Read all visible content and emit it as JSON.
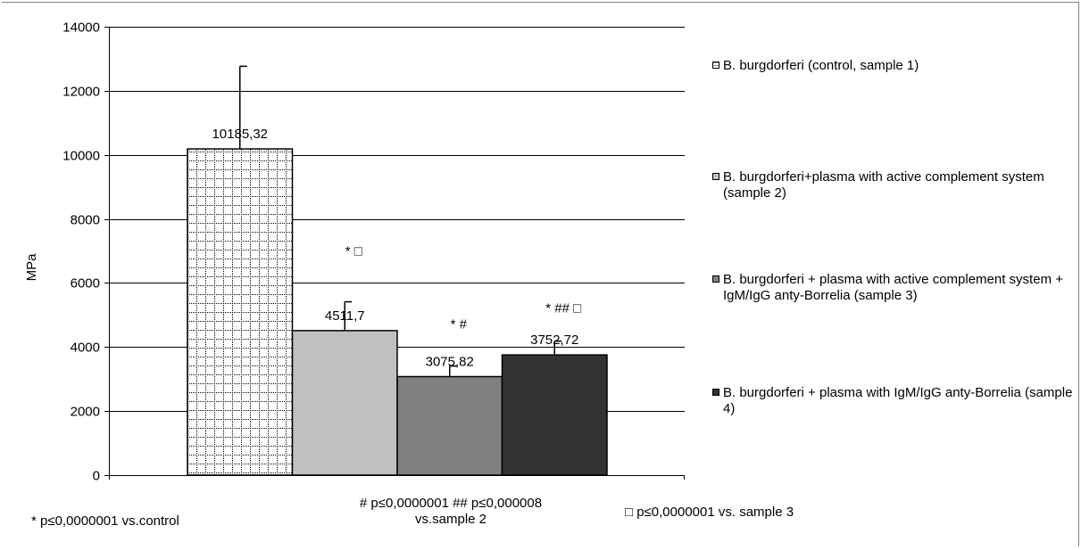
{
  "colors": {
    "sample1": "#ffffff",
    "sample2": "#c0c0c0",
    "sample3": "#808080",
    "sample4": "#333333",
    "grid": "#000000"
  },
  "legend": {
    "items": [
      {
        "label": "B. burgdorferi (control, sample 1)",
        "color": "#ffffff",
        "pattern": "dotted-grid"
      },
      {
        "label": "B. burgdorferi+plasma with active complement system (sample 2)",
        "color": "#c0c0c0"
      },
      {
        "label": "B. burgdorferi + plasma with active complement system + IgM/IgG anty-Borrelia (sample 3)",
        "color": "#808080"
      },
      {
        "label": "B. burgdorferi + plasma with  IgM/IgG anty-Borrelia (sample 4)",
        "color": "#333333"
      }
    ]
  },
  "notes": {
    "left": "* p≤0,0000001 vs.control",
    "mid_line1": "# p≤0,0000001  ## p≤0,000008",
    "mid_line2": "vs.sample 2",
    "right": "□ p≤0,0000001 vs. sample 3"
  },
  "chart_data": {
    "type": "bar",
    "title": "",
    "xlabel": "",
    "ylabel": "MPa",
    "ylim": [
      0,
      14000
    ],
    "yticks": [
      0,
      2000,
      4000,
      6000,
      8000,
      10000,
      12000,
      14000
    ],
    "grid": true,
    "legend_position": "right",
    "series": [
      {
        "name": "B. burgdorferi (control, sample 1)",
        "value": 10185.32,
        "label": "10185,32",
        "error": 2580,
        "annotation": ""
      },
      {
        "name": "B. burgdorferi+plasma with active complement system (sample 2)",
        "value": 4511.7,
        "label": "4511,7",
        "error": 900,
        "annotation": "*  □"
      },
      {
        "name": "B. burgdorferi + plasma with active complement system + IgM/IgG anty-Borrelia (sample 3)",
        "value": 3075.82,
        "label": "3075,82",
        "error": 330,
        "annotation": "* #"
      },
      {
        "name": "B. burgdorferi + plasma with  IgM/IgG anty-Borrelia (sample 4)",
        "value": 3752.72,
        "label": "3752,72",
        "error": 430,
        "annotation": "* ## □"
      }
    ]
  }
}
